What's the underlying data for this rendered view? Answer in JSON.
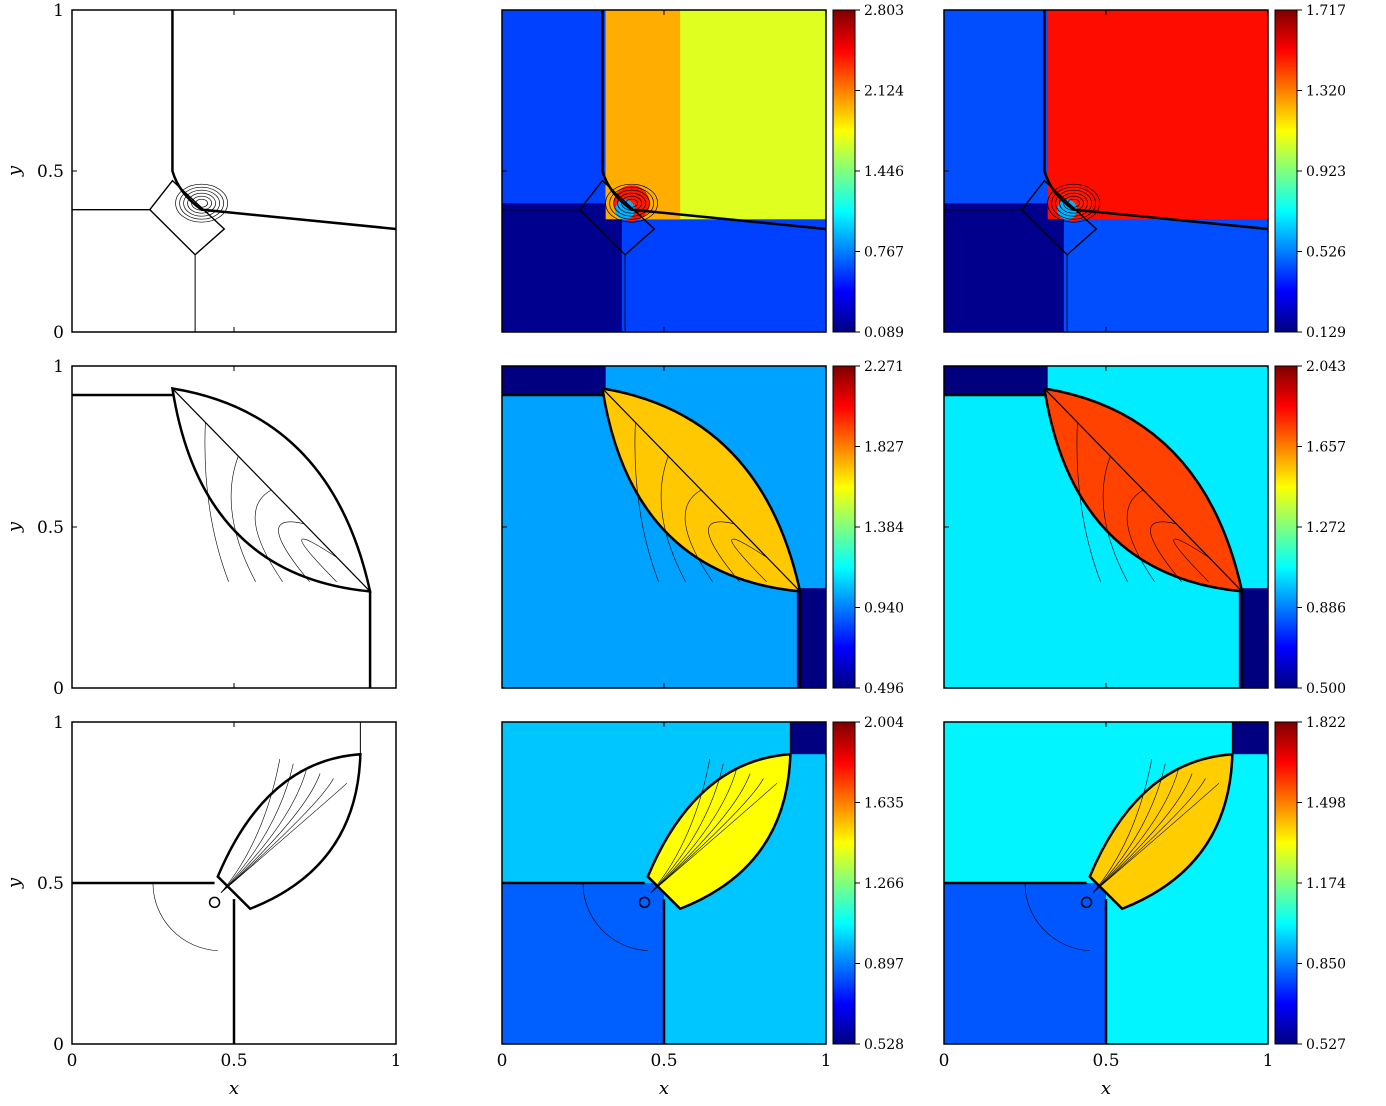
{
  "chart_data": [
    {
      "type": "contour",
      "row": 1,
      "variant": "lines",
      "xlabel": "",
      "ylabel": "y",
      "x_ticks": [
        "0",
        "0.5",
        "1"
      ],
      "y_ticks": [
        "0",
        "0.5",
        "1"
      ],
      "xlim": [
        0,
        1
      ],
      "ylim": [
        0,
        1
      ],
      "grid": false,
      "regions": {
        "left_bottom": [
          0.0,
          0.38
        ],
        "interface_y": 0.38,
        "interface_x": 0.37,
        "center": [
          0.37,
          0.35
        ]
      }
    },
    {
      "type": "heatmap",
      "row": 1,
      "variant": "filled",
      "xlabel": "",
      "ylabel": "",
      "x_ticks": [
        "0",
        "0.5",
        "1"
      ],
      "y_ticks": [],
      "xlim": [
        0,
        1
      ],
      "ylim": [
        0,
        1
      ],
      "grid": false,
      "colorbar": {
        "ticks": [
          "0.089",
          "0.767",
          "1.446",
          "2.124",
          "2.803"
        ],
        "min": 0.089,
        "max": 2.803
      },
      "region_values": {
        "top_right": 1.7,
        "top_left": 0.6,
        "bottom_left": 0.13,
        "bottom_right": 0.6,
        "top_center": 2.0
      }
    },
    {
      "type": "heatmap",
      "row": 1,
      "variant": "filled",
      "xlabel": "",
      "ylabel": "",
      "x_ticks": [
        "0",
        "0.5",
        "1"
      ],
      "y_ticks": [],
      "xlim": [
        0,
        1
      ],
      "ylim": [
        0,
        1
      ],
      "grid": false,
      "colorbar": {
        "ticks": [
          "0.129",
          "0.526",
          "0.923",
          "1.320",
          "1.717"
        ],
        "min": 0.129,
        "max": 1.717
      },
      "region_values": {
        "top_right": 1.5,
        "top_left": 0.45,
        "bottom_left": 0.15,
        "bottom_right": 0.45
      }
    },
    {
      "type": "contour",
      "row": 2,
      "variant": "lines",
      "xlabel": "",
      "ylabel": "y",
      "x_ticks": [
        "0",
        "0.5",
        "1"
      ],
      "y_ticks": [
        "0",
        "0.5",
        "1"
      ],
      "xlim": [
        0,
        1
      ],
      "ylim": [
        0,
        1
      ],
      "grid": false
    },
    {
      "type": "heatmap",
      "row": 2,
      "variant": "filled",
      "xlabel": "",
      "ylabel": "",
      "x_ticks": [
        "0",
        "0.5",
        "1"
      ],
      "y_ticks": [],
      "xlim": [
        0,
        1
      ],
      "ylim": [
        0,
        1
      ],
      "grid": false,
      "colorbar": {
        "ticks": [
          "0.496",
          "0.940",
          "1.384",
          "1.827",
          "2.271"
        ],
        "min": 0.496,
        "max": 2.271
      },
      "region_values": {
        "background": 1.0,
        "lens": 1.7,
        "corner": 0.5
      }
    },
    {
      "type": "heatmap",
      "row": 2,
      "variant": "filled",
      "xlabel": "",
      "ylabel": "",
      "x_ticks": [
        "0",
        "0.5",
        "1"
      ],
      "y_ticks": [],
      "xlim": [
        0,
        1
      ],
      "ylim": [
        0,
        1
      ],
      "grid": false,
      "colorbar": {
        "ticks": [
          "0.500",
          "0.886",
          "1.272",
          "1.657",
          "2.043"
        ],
        "min": 0.5,
        "max": 2.043
      },
      "region_values": {
        "background": 1.05,
        "lens": 1.75,
        "corner": 0.5
      }
    },
    {
      "type": "contour",
      "row": 3,
      "variant": "lines",
      "xlabel": "x",
      "ylabel": "y",
      "x_ticks": [
        "0",
        "0.5",
        "1"
      ],
      "y_ticks": [
        "0",
        "0.5",
        "1"
      ],
      "xlim": [
        0,
        1
      ],
      "ylim": [
        0,
        1
      ],
      "grid": false
    },
    {
      "type": "heatmap",
      "row": 3,
      "variant": "filled",
      "xlabel": "x",
      "ylabel": "",
      "x_ticks": [
        "0",
        "0.5",
        "1"
      ],
      "y_ticks": [],
      "xlim": [
        0,
        1
      ],
      "ylim": [
        0,
        1
      ],
      "grid": false,
      "colorbar": {
        "ticks": [
          "0.528",
          "0.897",
          "1.266",
          "1.635",
          "2.004"
        ],
        "min": 0.528,
        "max": 2.004
      },
      "region_values": {
        "background": 1.0,
        "bottom_left": 0.85,
        "lobe": 1.45,
        "corner": 0.53
      }
    },
    {
      "type": "heatmap",
      "row": 3,
      "variant": "filled",
      "xlabel": "x",
      "ylabel": "",
      "x_ticks": [
        "0",
        "0.5",
        "1"
      ],
      "y_ticks": [],
      "xlim": [
        0,
        1
      ],
      "ylim": [
        0,
        1
      ],
      "grid": false,
      "colorbar": {
        "ticks": [
          "0.527",
          "0.850",
          "1.174",
          "1.498",
          "1.822"
        ],
        "min": 0.527,
        "max": 1.822
      },
      "region_values": {
        "background": 1.0,
        "bottom_left": 0.8,
        "lobe": 1.4,
        "corner": 0.53
      }
    }
  ],
  "colors": {
    "jet": [
      "#00007f",
      "#0000ff",
      "#007fff",
      "#00ffff",
      "#7fff7f",
      "#ffff00",
      "#ff7f00",
      "#ff0000",
      "#7f0000"
    ],
    "line": "#000000"
  }
}
